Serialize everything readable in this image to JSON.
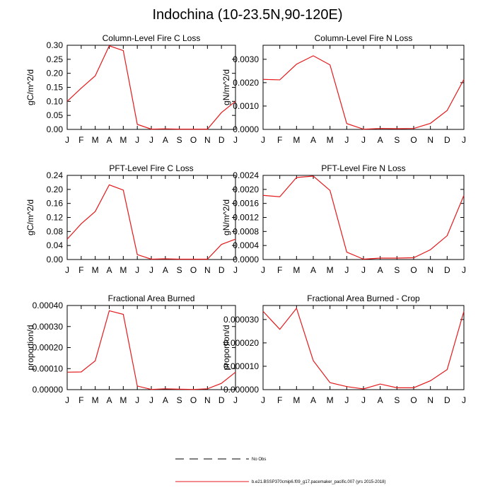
{
  "figure": {
    "title": "Indochina (10-23.5N,90-120E)",
    "legend": [
      {
        "label": "No Obs",
        "style": "dashed",
        "color": "#000000"
      },
      {
        "label": "b.e21.BSSP370cmip6.f09_g17.pacemaker_pacific.007 (yrs 2015-2018)",
        "style": "solid",
        "color": "#e41a1c"
      }
    ]
  },
  "chart_data": [
    {
      "type": "line",
      "title": "Column-Level Fire C Loss",
      "ylabel": "gC/m^2/d",
      "categories": [
        "J",
        "F",
        "M",
        "A",
        "M",
        "J",
        "J",
        "A",
        "S",
        "O",
        "N",
        "D",
        "J"
      ],
      "ylim": [
        0,
        0.3
      ],
      "yticks": [
        0,
        0.05,
        0.1,
        0.15,
        0.2,
        0.25,
        0.3
      ],
      "ytick_labels": [
        "0.00",
        "0.05",
        "0.10",
        "0.15",
        "0.20",
        "0.25",
        "0.30"
      ],
      "series": [
        {
          "name": "b.e21.BSSP370cmip6.f09_g17.pacemaker_pacific.007 (yrs 2015-2018)",
          "color": "#e41a1c",
          "values": [
            0.1,
            0.147,
            0.191,
            0.298,
            0.281,
            0.018,
            0.001,
            0.002,
            0.001,
            0.001,
            0.001,
            0.06,
            0.1
          ]
        }
      ]
    },
    {
      "type": "line",
      "title": "Column-Level Fire N Loss",
      "ylabel": "gN/m^2/d",
      "categories": [
        "J",
        "F",
        "M",
        "A",
        "M",
        "J",
        "J",
        "A",
        "S",
        "O",
        "N",
        "D",
        "J"
      ],
      "ylim": [
        0,
        0.0036
      ],
      "yticks": [
        0,
        0.001,
        0.002,
        0.003
      ],
      "ytick_labels": [
        "0.0000",
        "0.0010",
        "0.0020",
        "0.0030"
      ],
      "series": [
        {
          "name": "b.e21.BSSP370cmip6.f09_g17.pacemaker_pacific.007 (yrs 2015-2018)",
          "color": "#e41a1c",
          "values": [
            0.00214,
            0.00212,
            0.00279,
            0.00315,
            0.00276,
            0.00025,
            1e-05,
            4e-05,
            3e-05,
            4e-05,
            0.00026,
            0.00081,
            0.00214
          ]
        }
      ]
    },
    {
      "type": "line",
      "title": "PFT-Level Fire C Loss",
      "ylabel": "gC/m^2/d",
      "categories": [
        "J",
        "F",
        "M",
        "A",
        "M",
        "J",
        "J",
        "A",
        "S",
        "O",
        "N",
        "D",
        "J"
      ],
      "ylim": [
        0,
        0.24
      ],
      "yticks": [
        0,
        0.04,
        0.08,
        0.12,
        0.16,
        0.2,
        0.24
      ],
      "ytick_labels": [
        "0.00",
        "0.04",
        "0.08",
        "0.12",
        "0.16",
        "0.20",
        "0.24"
      ],
      "series": [
        {
          "name": "b.e21.BSSP370cmip6.f09_g17.pacemaker_pacific.007 (yrs 2015-2018)",
          "color": "#e41a1c",
          "values": [
            0.058,
            0.102,
            0.137,
            0.213,
            0.198,
            0.014,
            0.001,
            0.002,
            0.001,
            0.001,
            0.001,
            0.043,
            0.058
          ]
        }
      ]
    },
    {
      "type": "line",
      "title": "PFT-Level Fire N Loss",
      "ylabel": "gN/m^2/d",
      "categories": [
        "J",
        "F",
        "M",
        "A",
        "M",
        "J",
        "J",
        "A",
        "S",
        "O",
        "N",
        "D",
        "J"
      ],
      "ylim": [
        0,
        0.0024
      ],
      "yticks": [
        0,
        0.0004,
        0.0008,
        0.0012,
        0.0016,
        0.002,
        0.0024
      ],
      "ytick_labels": [
        "0.0000",
        "0.0004",
        "0.0008",
        "0.0012",
        "0.0016",
        "0.0020",
        "0.0024"
      ],
      "series": [
        {
          "name": "b.e21.BSSP370cmip6.f09_g17.pacemaker_pacific.007 (yrs 2015-2018)",
          "color": "#e41a1c",
          "values": [
            0.00183,
            0.00179,
            0.00234,
            0.00238,
            0.00197,
            0.00021,
            1e-05,
            4e-05,
            4e-05,
            5e-05,
            0.00028,
            0.00068,
            0.00183
          ]
        }
      ]
    },
    {
      "type": "line",
      "title": "Fractional Area Burned",
      "ylabel": "proportion/d",
      "categories": [
        "J",
        "F",
        "M",
        "A",
        "M",
        "J",
        "J",
        "A",
        "S",
        "O",
        "N",
        "D",
        "J"
      ],
      "ylim": [
        0,
        0.0004
      ],
      "yticks": [
        0,
        0.0001,
        0.0002,
        0.0003,
        0.0004
      ],
      "ytick_labels": [
        "0.00000",
        "0.00010",
        "0.00020",
        "0.00030",
        "0.00040"
      ],
      "series": [
        {
          "name": "b.e21.BSSP370cmip6.f09_g17.pacemaker_pacific.007 (yrs 2015-2018)",
          "color": "#e41a1c",
          "values": [
            8.3e-05,
            8.4e-05,
            0.000137,
            0.000375,
            0.000358,
            1.7e-05,
            1e-06,
            4e-06,
            2e-06,
            1e-06,
            4e-06,
            3e-05,
            8.3e-05
          ]
        }
      ]
    },
    {
      "type": "line",
      "title": "Fractional Area Burned - Crop",
      "ylabel": "proportion/d",
      "categories": [
        "J",
        "F",
        "M",
        "A",
        "M",
        "J",
        "J",
        "A",
        "S",
        "O",
        "N",
        "D",
        "J"
      ],
      "ylim": [
        0,
        3.6e-05
      ],
      "yticks": [
        0,
        1e-05,
        2e-05,
        3e-05
      ],
      "ytick_labels": [
        "0.000000",
        "0.000010",
        "0.000020",
        "0.000030"
      ],
      "series": [
        {
          "name": "b.e21.BSSP370cmip6.f09_g17.pacemaker_pacific.007 (yrs 2015-2018)",
          "color": "#e41a1c",
          "values": [
            3.35e-05,
            2.58e-05,
            3.48e-05,
            1.24e-05,
            3e-06,
            1.3e-06,
            3e-07,
            2.4e-06,
            8e-07,
            8e-07,
            3.8e-06,
            8.6e-06,
            3.35e-05
          ]
        }
      ]
    }
  ]
}
